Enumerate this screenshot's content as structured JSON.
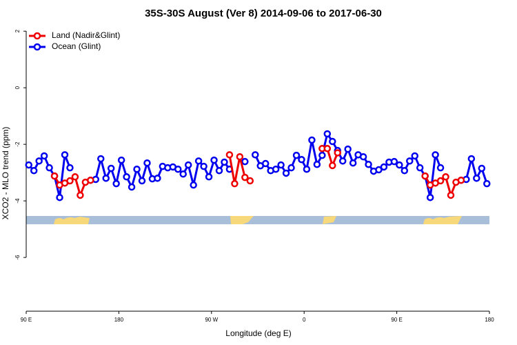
{
  "chart_data": {
    "type": "line",
    "title": "35S-30S August (Ver 8)   2014-09-06 to 2017-06-30",
    "x_label": "Longitude (deg E)",
    "y_label": "XCO2 - MLO trend (ppm)",
    "xlim": [
      90,
      540
    ],
    "xticks": [
      {
        "value": 90,
        "label": "90 E"
      },
      {
        "value": 180,
        "label": "180"
      },
      {
        "value": 270,
        "label": "90 W"
      },
      {
        "value": 360,
        "label": "0"
      },
      {
        "value": 450,
        "label": "90 E"
      },
      {
        "value": 540,
        "label": "180"
      }
    ],
    "ylim": [
      -7.9,
      2.2
    ],
    "yticks": [
      2,
      0,
      -2,
      -4,
      -6
    ],
    "legend": "top-left",
    "x": [
      92.5,
      97.5,
      102.5,
      107.5,
      112.5,
      117.5,
      122.5,
      127.5,
      132.5,
      137.5,
      142.5,
      147.5,
      152.5,
      157.5,
      162.5,
      167.5,
      172.5,
      177.5,
      182.5,
      187.5,
      192.5,
      197.5,
      202.5,
      207.5,
      212.5,
      217.5,
      222.5,
      227.5,
      232.5,
      237.5,
      242.5,
      247.5,
      252.5,
      257.5,
      262.5,
      267.5,
      272.5,
      277.5,
      282.5,
      287.5,
      292.5,
      297.5,
      302.5,
      307.5,
      312.5,
      317.5,
      322.5,
      327.5,
      332.5,
      337.5,
      342.5,
      347.5,
      352.5,
      357.5,
      362.5,
      367.5,
      372.5,
      377.5,
      382.5,
      387.5,
      392.5,
      397.5,
      402.5,
      407.5,
      412.5,
      417.5,
      422.5,
      427.5,
      432.5,
      437.5,
      442.5,
      447.5,
      452.5,
      457.5,
      462.5,
      467.5,
      472.5,
      477.5,
      482.5,
      487.5,
      492.5,
      497.5,
      502.5,
      507.5,
      512.5,
      517.5,
      522.5,
      527.5,
      532.5,
      537.5
    ],
    "series": [
      {
        "name": "Ocean (Glint)",
        "color": "#0000ee",
        "values": [
          -2.73,
          -2.93,
          -2.59,
          -2.41,
          -2.83,
          -3.12,
          -3.88,
          -2.37,
          -2.83,
          null,
          null,
          null,
          -3.27,
          -3.24,
          -2.51,
          -3.2,
          -2.85,
          -3.39,
          -2.56,
          -3.15,
          -3.51,
          -2.88,
          -3.29,
          -2.66,
          -3.22,
          -3.2,
          -2.78,
          -2.83,
          -2.8,
          -2.88,
          -3.05,
          -2.73,
          -3.44,
          -2.59,
          -2.78,
          -3.15,
          -2.56,
          -2.93,
          -2.63,
          -2.88,
          null,
          null,
          -2.61,
          null,
          -2.37,
          -2.76,
          -2.68,
          -2.93,
          -2.88,
          -2.73,
          -3.02,
          -2.83,
          -2.39,
          -2.54,
          -2.88,
          -1.85,
          -2.71,
          -2.39,
          -1.63,
          -1.9,
          -2.22,
          -2.59,
          -2.17,
          -2.66,
          -2.37,
          -2.44,
          -2.71,
          -2.95,
          -2.9,
          -2.8,
          -2.63,
          -2.61,
          -2.73,
          -2.93,
          -2.59,
          -2.41,
          -2.83,
          -3.12,
          -3.88,
          -2.37,
          -2.83,
          null,
          null,
          null,
          -3.27,
          -3.24,
          -2.51,
          -3.2,
          -2.85,
          -3.39
        ]
      },
      {
        "name": "Land (Nadir&Glint)",
        "color": "#ee0000",
        "values": [
          null,
          null,
          null,
          null,
          null,
          -3.12,
          -3.44,
          -3.37,
          -3.29,
          -3.15,
          -3.8,
          -3.34,
          -3.27,
          null,
          null,
          null,
          null,
          null,
          null,
          null,
          null,
          null,
          null,
          null,
          null,
          null,
          null,
          null,
          null,
          null,
          null,
          null,
          null,
          null,
          null,
          null,
          null,
          null,
          null,
          -2.37,
          -3.39,
          -2.44,
          -3.17,
          -3.29,
          null,
          null,
          null,
          null,
          null,
          null,
          null,
          null,
          null,
          null,
          null,
          null,
          null,
          -2.15,
          -2.15,
          -2.75,
          -2.3,
          null,
          null,
          null,
          null,
          null,
          null,
          null,
          null,
          null,
          null,
          null,
          null,
          null,
          null,
          null,
          null,
          -3.12,
          -3.44,
          -3.37,
          -3.29,
          -3.15,
          -3.8,
          -3.34,
          -3.27,
          null,
          null,
          null,
          null,
          null
        ]
      }
    ]
  }
}
